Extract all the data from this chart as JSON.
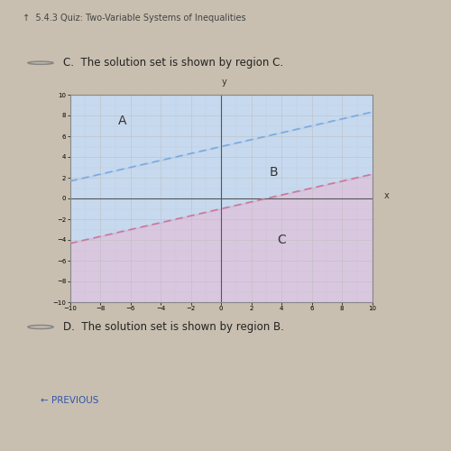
{
  "header": "5.4.3 Quiz: Two-Variable Systems of Inequalities",
  "title_C": "C.  The solution set is shown by region C.",
  "title_D": "D.  The solution set is shown by region B.",
  "prev_text": "← PREVIOUS",
  "line1_slope": 0.333333,
  "line1_intercept": 5,
  "line1_color": "#7aaadd",
  "line1_style": "dashed",
  "line2_slope": 0.333333,
  "line2_intercept": -1,
  "line2_color": "#cc7799",
  "line2_style": "dashed",
  "region_A_color": "#b8d0ec",
  "region_B_color": "#b8d0ec",
  "region_C_color": "#d0b8d8",
  "label_A": "A",
  "label_B": "B",
  "label_C": "C",
  "xlim": [
    -10,
    10
  ],
  "ylim": [
    -10,
    10
  ],
  "outer_bg": "#c8bfb0",
  "header_bg": "#a8a098",
  "plot_bg": "#f5f5f5",
  "plot_border": "#888888",
  "grid_color": "#bbbbbb",
  "radio_color": "#cccccc"
}
